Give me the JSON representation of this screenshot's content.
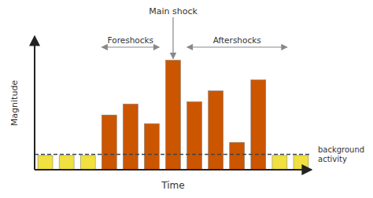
{
  "chart_data": {
    "type": "bar",
    "title": "Main shock",
    "x_label": "Time",
    "y_label": "Magnitude",
    "categories": [
      null,
      null,
      null,
      null,
      null,
      null,
      null,
      null,
      null,
      null,
      null,
      null,
      null
    ],
    "values": [
      0.13,
      0.13,
      0.13,
      0.5,
      0.6,
      0.42,
      1.0,
      0.62,
      0.72,
      0.25,
      0.82,
      0.13,
      0.13
    ],
    "colors": [
      "#f0e040",
      "#f0e040",
      "#f0e040",
      "#cc5500",
      "#cc5500",
      "#cc5500",
      "#cc5500",
      "#cc5500",
      "#cc5500",
      "#cc5500",
      "#cc5500",
      "#f0e040",
      "#f0e040"
    ],
    "ylim": [
      0,
      1.22
    ],
    "tick_labels": false,
    "grid": false,
    "annotations": [
      {
        "text": "background\nactivity",
        "y": 0.14
      },
      {
        "text": "Foreshocks"
      },
      {
        "text": "Aftershocks"
      }
    ]
  }
}
